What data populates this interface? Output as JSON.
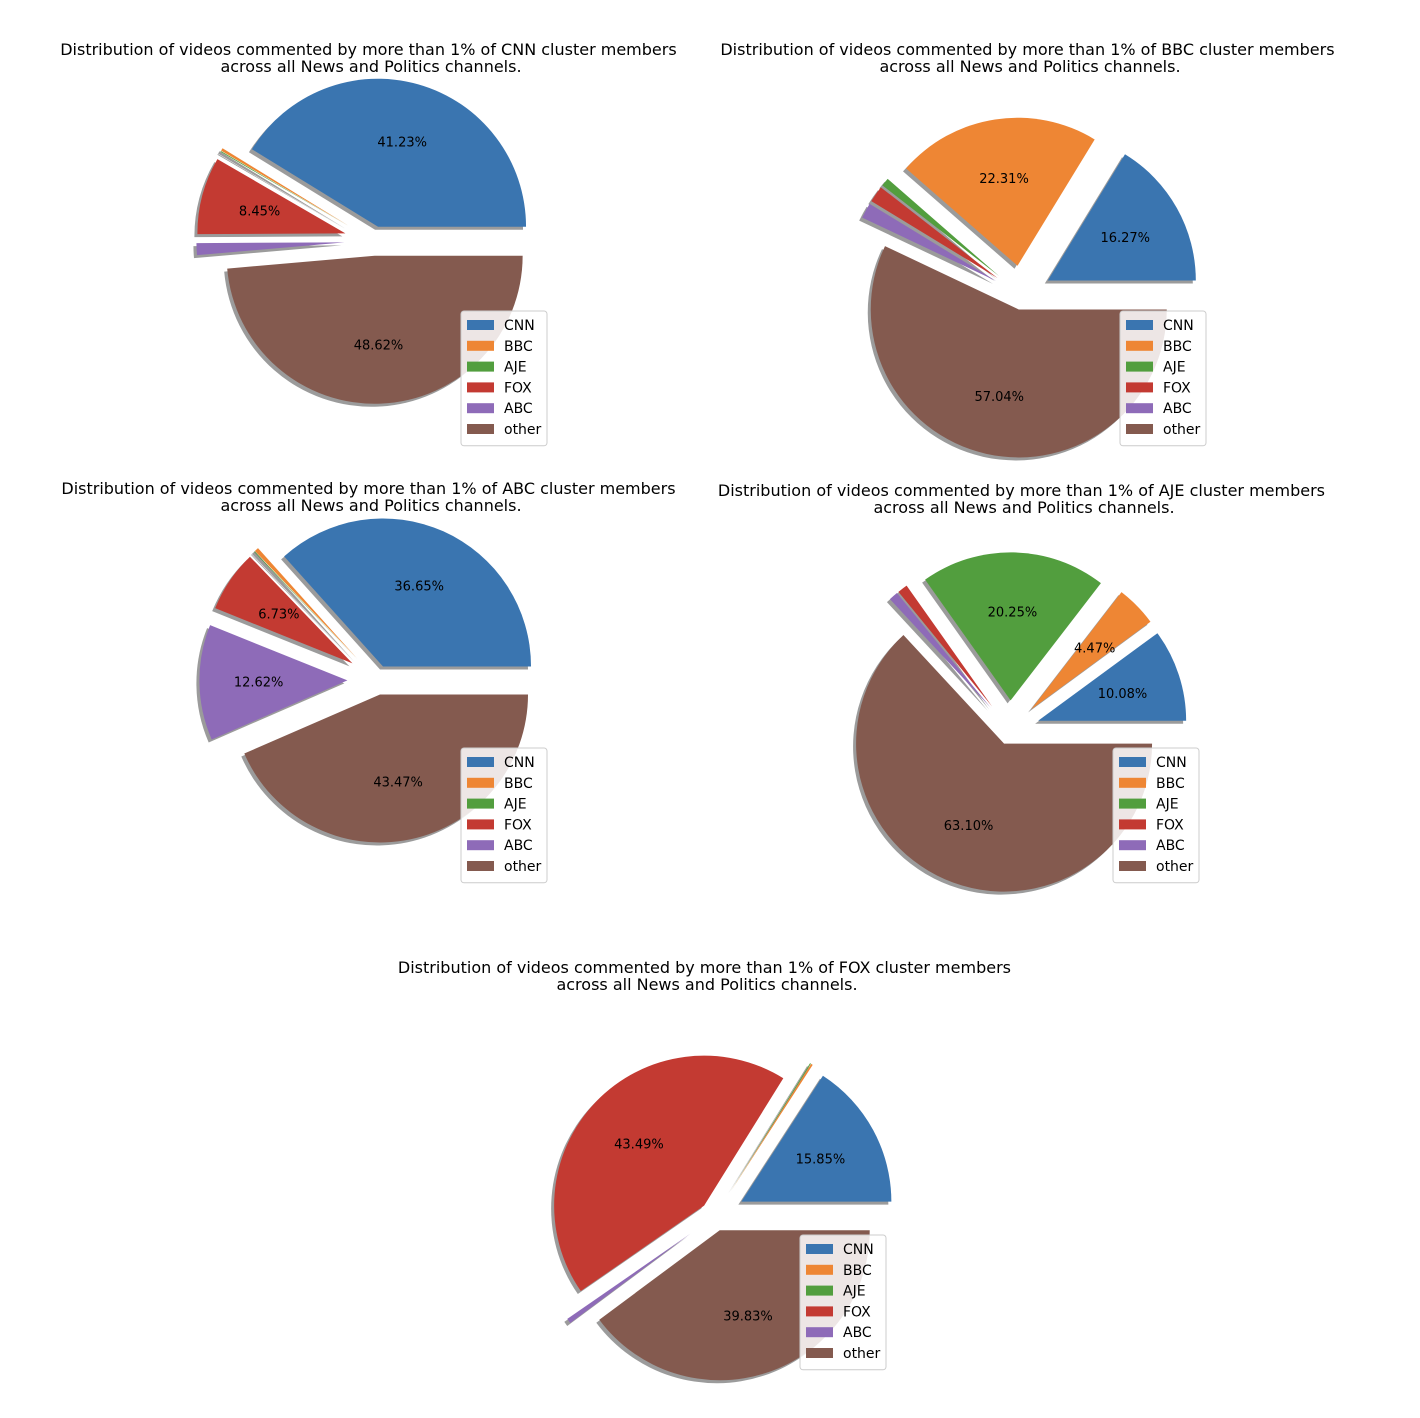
{
  "colors": {
    "CNN": "#3a75b0",
    "BBC": "#ee8634",
    "AJE": "#529e3e",
    "FOX": "#c33a32",
    "ABC": "#8e6bb8",
    "other": "#845a4f",
    "shadow": "#8a8a8a"
  },
  "chart_data": [
    {
      "type": "pie",
      "title": "Distribution of videos commented by more than 1% of CNN cluster members\nacross all News and Politics channels.",
      "categories": [
        "CNN",
        "BBC",
        "AJE",
        "FOX",
        "ABC",
        "other"
      ],
      "values": [
        41.23,
        0.3,
        0.1,
        8.45,
        1.3,
        48.62
      ],
      "labels": [
        "41.23%",
        "",
        "",
        "8.45%",
        "",
        "48.62%"
      ],
      "explode": [
        0.1,
        0.2,
        0.2,
        0.2,
        0.2,
        0.1
      ],
      "start_angle_deg": 0,
      "shadow": true,
      "legend": [
        "CNN",
        "BBC",
        "AJE",
        "FOX",
        "ABC",
        "other"
      ],
      "legend_loc": "lower right"
    },
    {
      "type": "pie",
      "title": "Distribution of videos commented by more than 1% of BBC cluster members\nacross all News and Politics channels.",
      "categories": [
        "CNN",
        "BBC",
        "AJE",
        "FOX",
        "ABC",
        "other"
      ],
      "values": [
        16.27,
        22.31,
        0.9,
        1.8,
        1.68,
        57.04
      ],
      "labels": [
        "16.27%",
        "22.31%",
        "",
        "",
        "",
        "57.04%"
      ],
      "explode": [
        0.2,
        0.2,
        0.2,
        0.2,
        0.2,
        0.1
      ],
      "start_angle_deg": 0,
      "shadow": true,
      "legend": [
        "CNN",
        "BBC",
        "AJE",
        "FOX",
        "ABC",
        "other"
      ],
      "legend_loc": "lower right"
    },
    {
      "type": "pie",
      "title": "Distribution of videos commented by more than 1% of ABC cluster members\nacross all News and Politics channels.",
      "categories": [
        "CNN",
        "BBC",
        "AJE",
        "FOX",
        "ABC",
        "other"
      ],
      "values": [
        36.65,
        0.45,
        0.08,
        6.73,
        12.62,
        43.47
      ],
      "labels": [
        "36.65%",
        "",
        "",
        "6.73%",
        "12.62%",
        "43.47%"
      ],
      "explode": [
        0.1,
        0.2,
        0.2,
        0.2,
        0.2,
        0.1
      ],
      "start_angle_deg": 0,
      "shadow": true,
      "legend": [
        "CNN",
        "BBC",
        "AJE",
        "FOX",
        "ABC",
        "other"
      ],
      "legend_loc": "lower right"
    },
    {
      "type": "pie",
      "title": "Distribution of videos commented by more than 1% of AJE cluster members\nacross all News and Politics channels.",
      "categories": [
        "CNN",
        "BBC",
        "AJE",
        "FOX",
        "ABC",
        "other"
      ],
      "values": [
        10.08,
        4.47,
        20.25,
        1.1,
        1.0,
        63.1
      ],
      "labels": [
        "10.08%",
        "4.47%",
        "20.25%",
        "",
        "",
        "63.10%"
      ],
      "explode": [
        0.2,
        0.2,
        0.2,
        0.2,
        0.2,
        0.1
      ],
      "start_angle_deg": 0,
      "shadow": true,
      "legend": [
        "CNN",
        "BBC",
        "AJE",
        "FOX",
        "ABC",
        "other"
      ],
      "legend_loc": "lower right"
    },
    {
      "type": "pie",
      "title": "Distribution of videos commented by more than 1% of FOX cluster members\nacross all News and Politics channels.",
      "categories": [
        "CNN",
        "BBC",
        "AJE",
        "FOX",
        "ABC",
        "other"
      ],
      "values": [
        15.85,
        0.2,
        0.1,
        43.49,
        0.53,
        39.83
      ],
      "labels": [
        "15.85%",
        "",
        "",
        "43.49%",
        "",
        "39.83%"
      ],
      "explode": [
        0.2,
        0.2,
        0.2,
        0.1,
        0.2,
        0.1
      ],
      "start_angle_deg": 0,
      "shadow": true,
      "legend": [
        "CNN",
        "BBC",
        "AJE",
        "FOX",
        "ABC",
        "other"
      ],
      "legend_loc": "lower right"
    }
  ]
}
